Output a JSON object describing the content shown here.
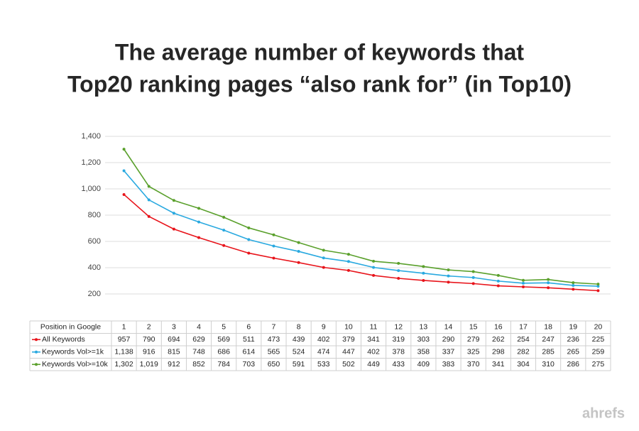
{
  "chart_data": {
    "type": "line",
    "title": [
      "The average number of keywords that",
      "Top20 ranking pages “also rank for” (in Top10)"
    ],
    "x_label": "Position in Google",
    "categories": [
      "1",
      "2",
      "3",
      "4",
      "5",
      "6",
      "7",
      "8",
      "9",
      "10",
      "11",
      "12",
      "13",
      "14",
      "15",
      "16",
      "17",
      "18",
      "19",
      "20"
    ],
    "series": [
      {
        "name": "All Keywords",
        "color": "#e8141b",
        "values": [
          957,
          790,
          694,
          629,
          569,
          511,
          473,
          439,
          402,
          379,
          341,
          319,
          303,
          290,
          279,
          262,
          254,
          247,
          236,
          225
        ],
        "value_labels": [
          "957",
          "790",
          "694",
          "629",
          "569",
          "511",
          "473",
          "439",
          "402",
          "379",
          "341",
          "319",
          "303",
          "290",
          "279",
          "262",
          "254",
          "247",
          "236",
          "225"
        ]
      },
      {
        "name": "Keywords Vol>=1k",
        "color": "#29a9e0",
        "values": [
          1138,
          916,
          815,
          748,
          686,
          614,
          565,
          524,
          474,
          447,
          402,
          378,
          358,
          337,
          325,
          298,
          282,
          285,
          265,
          259
        ],
        "value_labels": [
          "1,138",
          "916",
          "815",
          "748",
          "686",
          "614",
          "565",
          "524",
          "474",
          "447",
          "402",
          "378",
          "358",
          "337",
          "325",
          "298",
          "282",
          "285",
          "265",
          "259"
        ]
      },
      {
        "name": "Keywords Vol>=10k",
        "color": "#5aa02c",
        "values": [
          1302,
          1019,
          912,
          852,
          784,
          703,
          650,
          591,
          533,
          502,
          449,
          433,
          409,
          383,
          370,
          341,
          304,
          310,
          286,
          275
        ],
        "value_labels": [
          "1,302",
          "1,019",
          "912",
          "852",
          "784",
          "703",
          "650",
          "591",
          "533",
          "502",
          "449",
          "433",
          "409",
          "383",
          "370",
          "341",
          "304",
          "310",
          "286",
          "275"
        ]
      }
    ],
    "ylim": [
      200,
      1400
    ],
    "yticks": [
      200,
      400,
      600,
      800,
      {
        "value": 1000,
        "label": "1,000"
      },
      {
        "value": 1200,
        "label": "1,200"
      },
      {
        "value": 1400,
        "label": "1,400"
      }
    ],
    "grid": true
  },
  "watermark": "ahrefs"
}
